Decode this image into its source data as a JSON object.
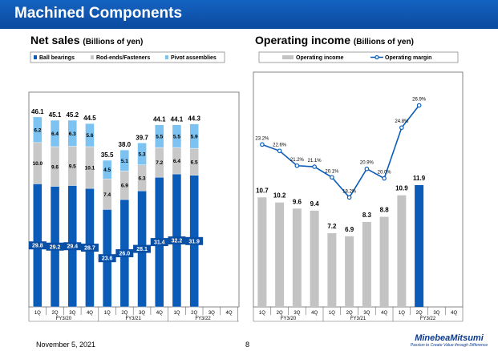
{
  "page": {
    "title": "Machined Components",
    "footer_date": "November 5, 2021",
    "page_number": "8",
    "logo_brand": "MinebeaMitsumi",
    "logo_tagline": "Passion to Create Value through Difference"
  },
  "colors": {
    "ball": "#0a5cb8",
    "rod": "#c8c8c8",
    "pivot": "#7cc3f2",
    "op_bar": "#c3c3c3",
    "op_bar_current": "#0a5cb8",
    "margin_line": "#0a5cb8"
  },
  "chart_data": [
    {
      "type": "bar",
      "title": "Net sales",
      "subtitle": "(Billions of yen)",
      "categories": [
        "1Q",
        "2Q",
        "3Q",
        "4Q",
        "1Q",
        "2Q",
        "3Q",
        "4Q",
        "1Q",
        "2Q",
        "3Q",
        "4Q"
      ],
      "groups": [
        "FY3/20",
        "FY3/21",
        "FY3/22"
      ],
      "series": [
        {
          "name": "Ball bearings",
          "values": [
            29.8,
            29.2,
            29.4,
            28.7,
            23.6,
            26.0,
            28.1,
            31.4,
            32.2,
            31.9,
            null,
            null
          ]
        },
        {
          "name": "Rod-ends/Fasteners",
          "values": [
            10.0,
            9.6,
            9.5,
            10.1,
            7.4,
            6.9,
            6.3,
            7.2,
            6.4,
            6.5,
            null,
            null
          ]
        },
        {
          "name": "Pivot assemblies",
          "values": [
            6.2,
            6.4,
            6.3,
            5.6,
            4.5,
            5.1,
            5.3,
            5.5,
            5.5,
            5.9,
            null,
            null
          ]
        }
      ],
      "totals": [
        "46.1",
        "45.1",
        "45.2",
        "44.5",
        "35.5",
        "38.0",
        "39.7",
        "44.1",
        "44.1",
        "44.3",
        null,
        null
      ],
      "ylim": [
        0,
        52
      ]
    },
    {
      "type": "bar",
      "title": "Operating income",
      "subtitle": "(Billions of yen)",
      "categories": [
        "1Q",
        "2Q",
        "3Q",
        "4Q",
        "1Q",
        "2Q",
        "3Q",
        "4Q",
        "1Q",
        "2Q",
        "3Q",
        "4Q"
      ],
      "groups": [
        "FY3/20",
        "FY3/21",
        "FY3/22"
      ],
      "series": [
        {
          "name": "Operating income",
          "values": [
            10.7,
            10.2,
            9.6,
            9.4,
            7.2,
            6.9,
            8.3,
            8.8,
            10.9,
            11.9,
            null,
            null
          ]
        },
        {
          "name": "Operating margin",
          "values": [
            "23.2%",
            "22.6%",
            "21.2%",
            "21.1%",
            "20.1%",
            "18.2%",
            "20.9%",
            "20.0%",
            "24.8%",
            "26.9%",
            null,
            null
          ]
        }
      ],
      "margin_numeric": [
        23.2,
        22.6,
        21.2,
        21.1,
        20.1,
        18.2,
        20.9,
        20.0,
        24.8,
        26.9
      ],
      "ylim": [
        0,
        18
      ]
    }
  ]
}
